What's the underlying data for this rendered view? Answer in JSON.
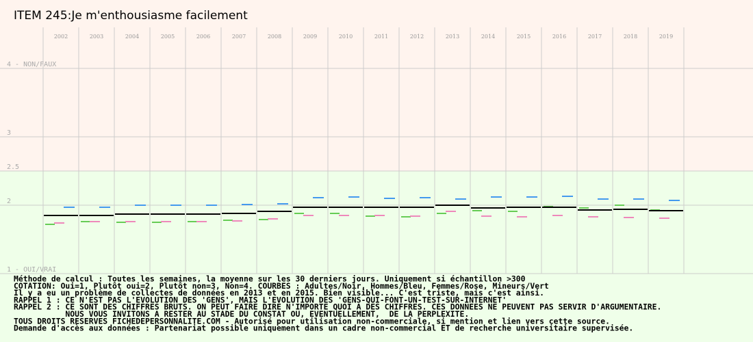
{
  "chart_data": {
    "type": "level",
    "title": "ITEM 245:Je m'enthousiasme facilement",
    "categories": [
      "2002",
      "2003",
      "2004",
      "2005",
      "2006",
      "2007",
      "2008",
      "2009",
      "2010",
      "2011",
      "2012",
      "2013",
      "2014",
      "2015",
      "2016",
      "2017",
      "2018",
      "2019"
    ],
    "series": [
      {
        "color": "#000000",
        "values": [
          1.85,
          1.85,
          1.87,
          1.87,
          1.87,
          1.88,
          1.91,
          1.97,
          1.97,
          1.97,
          1.97,
          2.0,
          1.96,
          1.97,
          1.97,
          1.93,
          1.94,
          1.92
        ]
      },
      {
        "color": "#4499ee",
        "values": [
          1.97,
          1.97,
          2.0,
          2.0,
          2.0,
          2.01,
          2.02,
          2.11,
          2.12,
          2.1,
          2.11,
          2.09,
          2.12,
          2.12,
          2.13,
          2.09,
          2.09,
          2.07
        ]
      },
      {
        "color": "#ee88bb",
        "values": [
          1.74,
          1.76,
          1.76,
          1.76,
          1.76,
          1.77,
          1.8,
          1.85,
          1.85,
          1.85,
          1.84,
          1.91,
          1.84,
          1.83,
          1.85,
          1.83,
          1.82,
          1.81
        ]
      },
      {
        "color": "#66cc55",
        "values": [
          1.72,
          1.76,
          1.75,
          1.75,
          1.76,
          1.78,
          1.79,
          1.88,
          1.88,
          1.84,
          1.83,
          1.88,
          1.92,
          1.91,
          1.98,
          1.96,
          2.0,
          1.93
        ]
      }
    ],
    "ylim": [
      0,
      5
    ],
    "yticks": [
      {
        "value": 4,
        "label": "4 - NON/FAUX"
      },
      3,
      2.5,
      2,
      {
        "value": 1,
        "label": "1 - OUI/VRAI"
      }
    ],
    "grid": true,
    "background_split": 2.5,
    "background_colors": [
      "#fff4ee",
      "#efffe9"
    ],
    "notes": [
      "Méthode de calcul : Toutes les semaines, la moyenne sur les 30 derniers jours. Uniquement si échantillon >300",
      "COTATION: Oui=1, Plutôt oui=2, Plutôt non=3, Non=4. COURBES : Adultes/Noir, Hommes/Bleu, Femmes/Rose, Mineurs/Vert",
      "Il y a eu un problème de collectes de données en 2013 et en 2015. Bien visible... C'est triste, mais c'est ainsi.",
      "RAPPEL 1 : CE N'EST PAS L'EVOLUTION DES 'GENS', MAIS L'EVOLUTION DES 'GENS-QUI-FONT-UN-TEST-SUR-INTERNET'",
      "RAPPEL 2 : CE SONT DES CHIFFRES BRUTS. ON PEUT FAIRE DIRE N'IMPORTE QUOI A DES CHIFFRES. CES DONNEES NE PEUVENT PAS SERVIR D'ARGUMENTAIRE.",
      "           NOUS VOUS INVITONS A RESTER AU STADE DU CONSTAT OU, EVENTUELLEMENT,  DE LA PERPLEXITE.",
      "TOUS DROITS RESERVES FICHEDEPERSONNALITE.COM - Autorisé pour utilisation non-commerciale, si mention et lien vers cette source.",
      "Demande d'accès aux données : Partenariat possible uniquement dans un cadre non-commercial ET de recherche universitaire supervisée."
    ]
  }
}
